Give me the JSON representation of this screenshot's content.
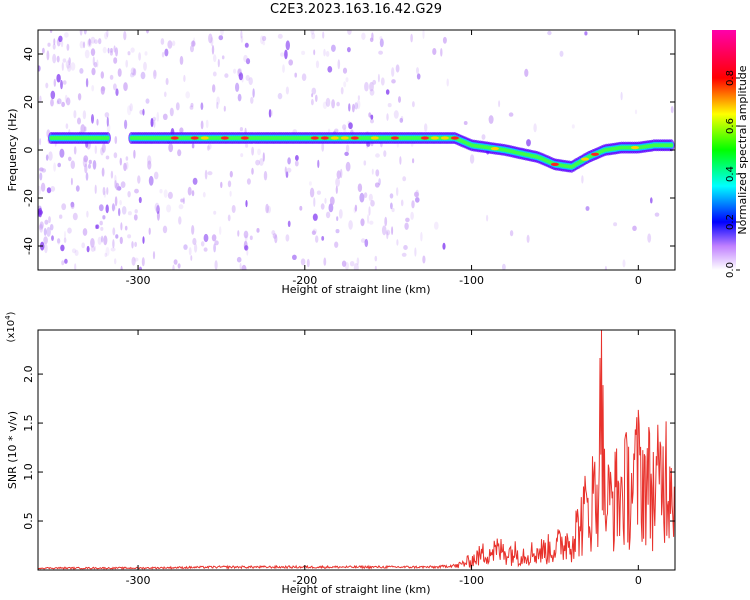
{
  "title": "C2E3.2023.163.16.42.G29",
  "chart_data": [
    {
      "type": "heatmap",
      "xlabel": "Height of straight line (km)",
      "ylabel": "Frequency (Hz)",
      "xlim": [
        -360,
        22
      ],
      "ylim": [
        -50,
        50
      ],
      "xticks": [
        -300,
        -200,
        -100,
        0
      ],
      "yticks": [
        -40,
        -20,
        0,
        20,
        40
      ],
      "colorbar": {
        "label": "Normalized spectral amplitude",
        "range": [
          0.0,
          1.0
        ],
        "ticks": [
          "0.0",
          "0.2",
          "0.4",
          "0.6",
          "0.8"
        ]
      },
      "ridge": {
        "description_values": "dominant frequency (Hz) vs height (km)",
        "x": [
          -350,
          -300,
          -250,
          -200,
          -150,
          -130,
          -110,
          -100,
          -80,
          -60,
          -50,
          -40,
          -30,
          -20,
          -10,
          0,
          10,
          20
        ],
        "y": [
          5,
          5,
          5,
          5,
          5,
          5,
          5,
          2,
          0,
          -3,
          -6,
          -7,
          -3,
          0,
          1,
          1,
          2,
          2
        ]
      }
    },
    {
      "type": "line",
      "xlabel": "Height of straight line (km)",
      "ylabel": "SNR (10 * v/v)",
      "y_multiplier": "(x10^4)",
      "xlim": [
        -360,
        22
      ],
      "ylim": [
        0,
        2.45
      ],
      "xticks": [
        -300,
        -200,
        -100,
        0
      ],
      "yticks": [
        0.5,
        1.0,
        1.5,
        2.0
      ],
      "color": "#e8322c",
      "series": [
        {
          "x": [
            -360,
            -300,
            -250,
            -200,
            -150,
            -120,
            -110,
            -100,
            -90,
            -80,
            -70,
            -60,
            -50,
            -40,
            -35,
            -30,
            -25,
            -22,
            -20,
            -15,
            -10,
            -5,
            0,
            5,
            10,
            15,
            20
          ],
          "y": [
            0.02,
            0.02,
            0.03,
            0.03,
            0.03,
            0.03,
            0.05,
            0.15,
            0.3,
            0.3,
            0.25,
            0.28,
            0.35,
            0.5,
            0.7,
            1.0,
            1.2,
            2.45,
            1.0,
            1.1,
            1.2,
            1.3,
            1.5,
            1.4,
            1.2,
            1.5,
            1.6
          ]
        }
      ]
    }
  ]
}
